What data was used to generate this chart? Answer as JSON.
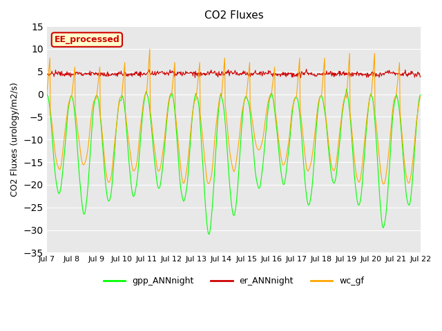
{
  "title": "CO2 Fluxes",
  "ylabel": "CO2 Fluxes (urology/m2/s)",
  "xlabel": "",
  "ylim": [
    -35,
    15
  ],
  "yticks": [
    -35,
    -30,
    -25,
    -20,
    -15,
    -10,
    -5,
    0,
    5,
    10,
    15
  ],
  "xtick_labels": [
    "Jul 7",
    "Jul 8",
    "Jul 9",
    "Jul 10",
    "Jul 11",
    "Jul 12",
    "Jul 13",
    "Jul 14",
    "Jul 15",
    "Jul 16",
    "Jul 17",
    "Jul 18",
    "Jul 19",
    "Jul 20",
    "Jul 21",
    "Jul 22"
  ],
  "n_days": 15,
  "n_points_per_day": 48,
  "annotation_text": "EE_processed",
  "annotation_bg": "#ffffcc",
  "annotation_edge": "#cc0000",
  "annotation_text_color": "#cc0000",
  "color_gpp": "#00ff00",
  "color_er": "#cc0000",
  "color_wc": "#ffa500",
  "legend_labels": [
    "gpp_ANNnight",
    "er_ANNnight",
    "wc_gf"
  ],
  "bg_color": "#e8e8e8",
  "fig_bg": "#ffffff",
  "linewidth": 0.8,
  "gpp_depths": [
    -22,
    -27,
    -24,
    -23,
    -21,
    -24,
    -31,
    -27,
    -21,
    -20,
    -25,
    -20,
    -25,
    -30,
    -25
  ],
  "wc_depths": [
    -17,
    -16,
    -20,
    -17,
    -17,
    -20,
    -20,
    -17,
    -13,
    -16,
    -17,
    -17,
    -20,
    -20,
    -20
  ],
  "spike_heights": [
    8,
    6,
    6,
    7,
    10,
    7,
    7,
    8,
    7,
    6,
    8,
    8,
    9,
    9,
    7
  ]
}
